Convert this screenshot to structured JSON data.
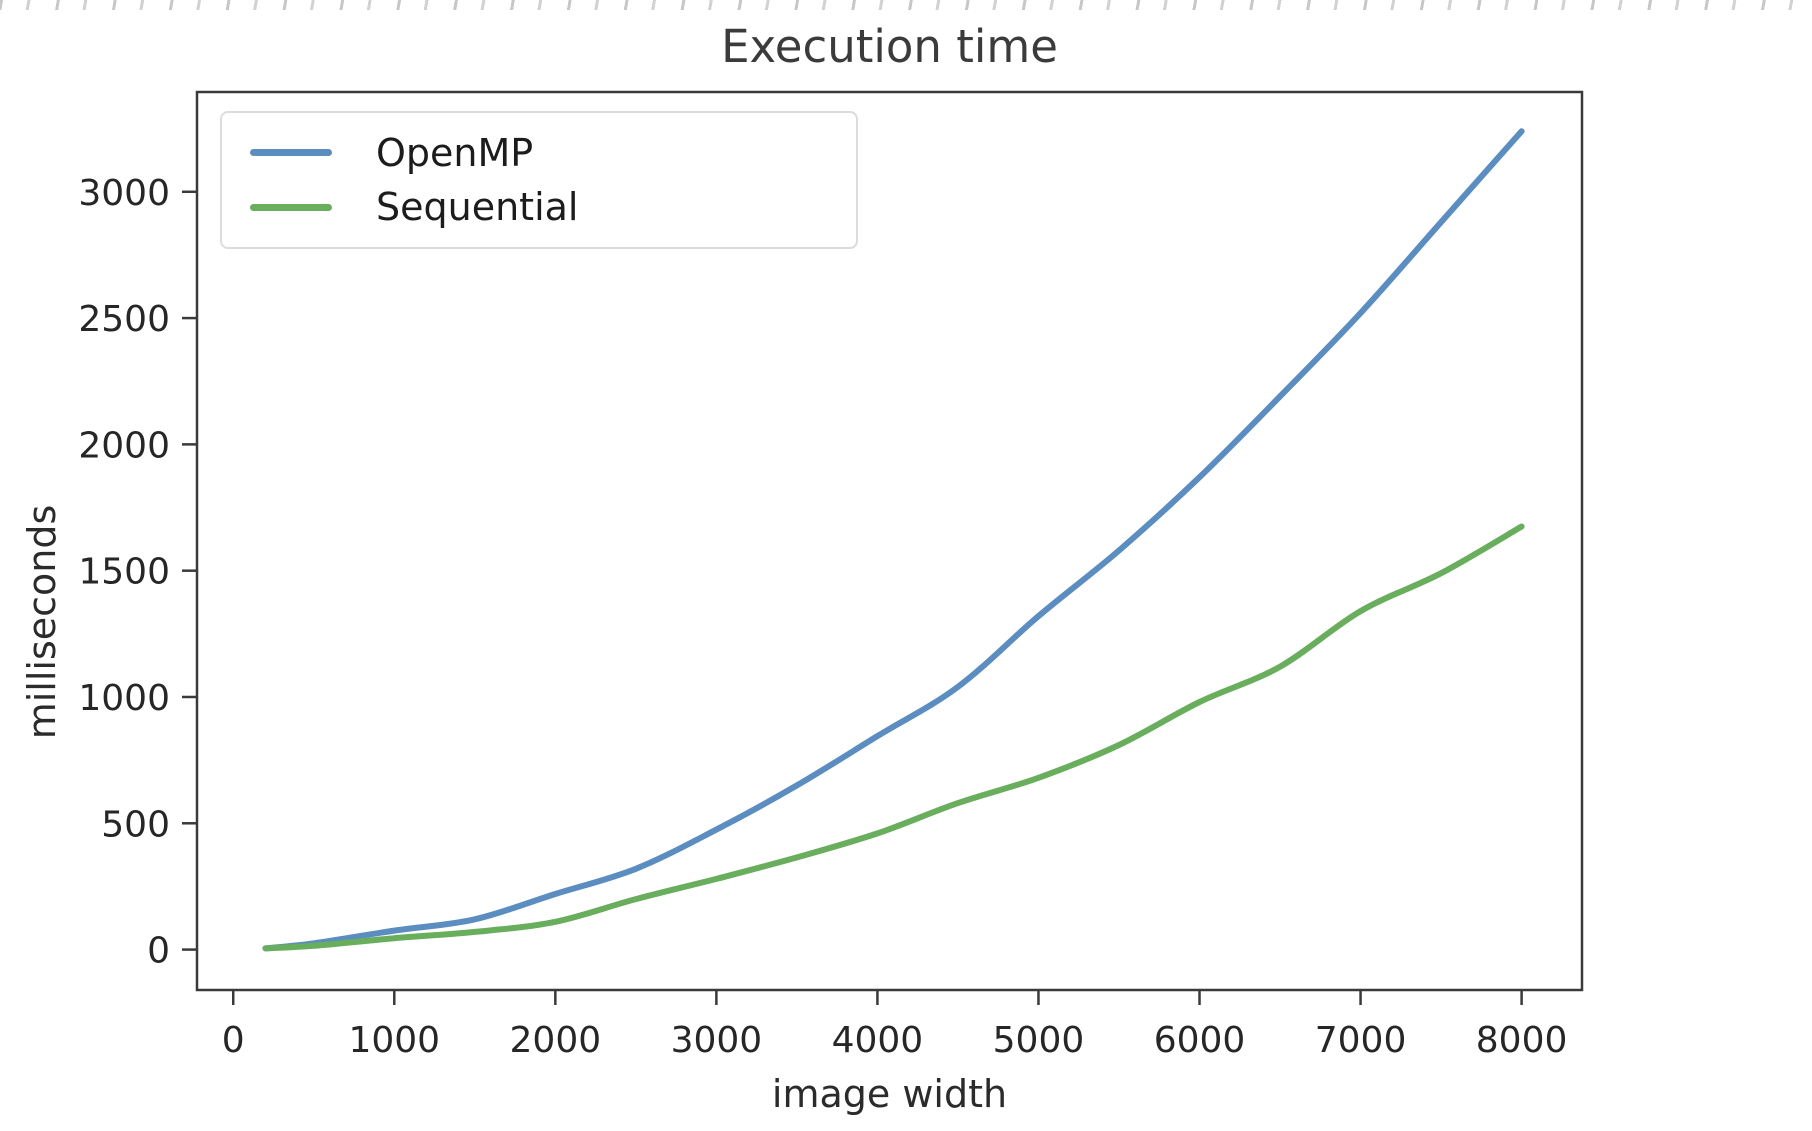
{
  "page": {
    "background": "#ffffff"
  },
  "chart": {
    "title": "Execution time",
    "xlabel": "image width",
    "ylabel": "milliseconds"
  },
  "legend": {
    "position": "upper-left",
    "items": [
      {
        "label": "OpenMP",
        "color": "#5b8dc1"
      },
      {
        "label": "Sequential",
        "color": "#68ae5d"
      }
    ]
  },
  "chart_data": {
    "type": "line",
    "title": "Execution time",
    "xlabel": "image width",
    "ylabel": "milliseconds",
    "x": [
      200,
      500,
      1000,
      1500,
      2000,
      2500,
      3000,
      3500,
      4000,
      4500,
      5000,
      5500,
      6000,
      6500,
      7000,
      7500,
      8000
    ],
    "series": [
      {
        "name": "OpenMP",
        "color": "#5b8dc1",
        "values": [
          5,
          25,
          75,
          120,
          220,
          320,
          475,
          650,
          845,
          1040,
          1320,
          1580,
          1870,
          2190,
          2520,
          2880,
          3240
        ]
      },
      {
        "name": "Sequential",
        "color": "#68ae5d",
        "values": [
          5,
          15,
          45,
          70,
          110,
          200,
          280,
          365,
          460,
          580,
          680,
          810,
          980,
          1120,
          1340,
          1490,
          1675
        ]
      }
    ],
    "x_ticks": [
      0,
      1000,
      2000,
      3000,
      4000,
      5000,
      6000,
      7000,
      8000
    ],
    "y_ticks": [
      0,
      500,
      1000,
      1500,
      2000,
      2500,
      3000
    ],
    "xlim": [
      -225,
      8375
    ],
    "ylim": [
      -160,
      3395
    ],
    "grid": false,
    "legend_position": "upper-left",
    "line_width": 6,
    "axis_color": "#3a3a3a",
    "tick_label_color": "#262626"
  }
}
